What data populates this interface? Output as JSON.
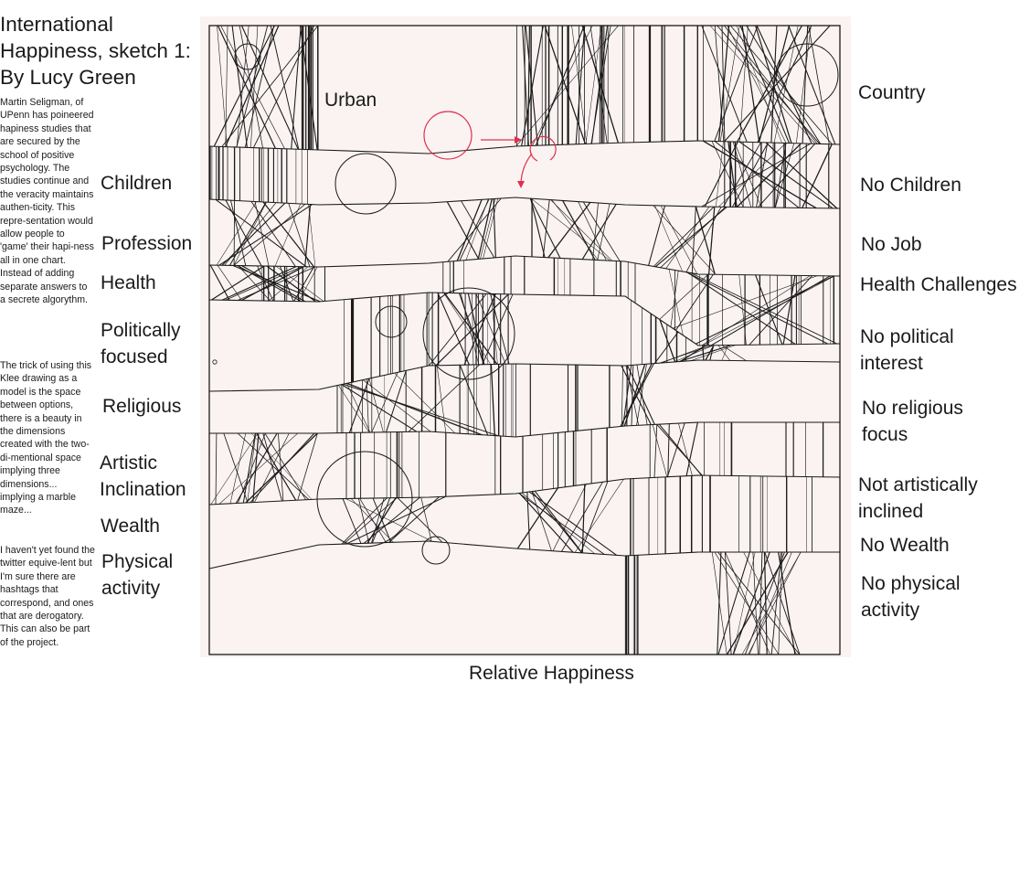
{
  "title_lines": [
    "International",
    "Happiness, sketch 1:",
    "By Lucy Green"
  ],
  "paragraphs": [
    "Martin Seligman, of UPenn has poineered hapiness studies that are secured by the school of positive psychology. The studies continue and the veracity maintains authen-ticity. This repre-sentation would allow people to 'game' their hapi-ness all in one chart. Instead of adding separate answers to a secrete algorythm.",
    "The trick of using this Klee drawing as a model is the space between options, there is a beauty in the dimensions created with the two-di-mentional space implying three dimensions... implying a marble maze...",
    "I haven't yet found the twitter equive-lent but I'm sure there are hashtags that correspond, and ones that are derogatory. This can also be part of the project."
  ],
  "left_labels": {
    "urban": "Urban",
    "children": "Children",
    "profession": "Profession",
    "health": "Health",
    "politically_1": "Politically",
    "politically_2": "focused",
    "religious": "Religious",
    "artistic_1": "Artistic",
    "artistic_2": "Inclination",
    "wealth": "Wealth",
    "physical_1": "Physical",
    "physical_2": "activity"
  },
  "right_labels": {
    "country": "Country",
    "no_children": "No Children",
    "no_job": "No Job",
    "health_challenges": "Health Challenges",
    "no_political_1": "No political",
    "no_political_2": "interest",
    "no_religious_1": "No religious",
    "no_religious_2": "focus",
    "not_artistic_1": "Not artistically",
    "not_artistic_2": "inclined",
    "no_wealth": "No Wealth",
    "no_physical_1": "No physical",
    "no_physical_2": "activity"
  },
  "x_axis_label": "Relative Happiness",
  "colors": {
    "ink": "#1a1a1a",
    "paper": "#faf3f2",
    "accent": "#e0304a"
  }
}
